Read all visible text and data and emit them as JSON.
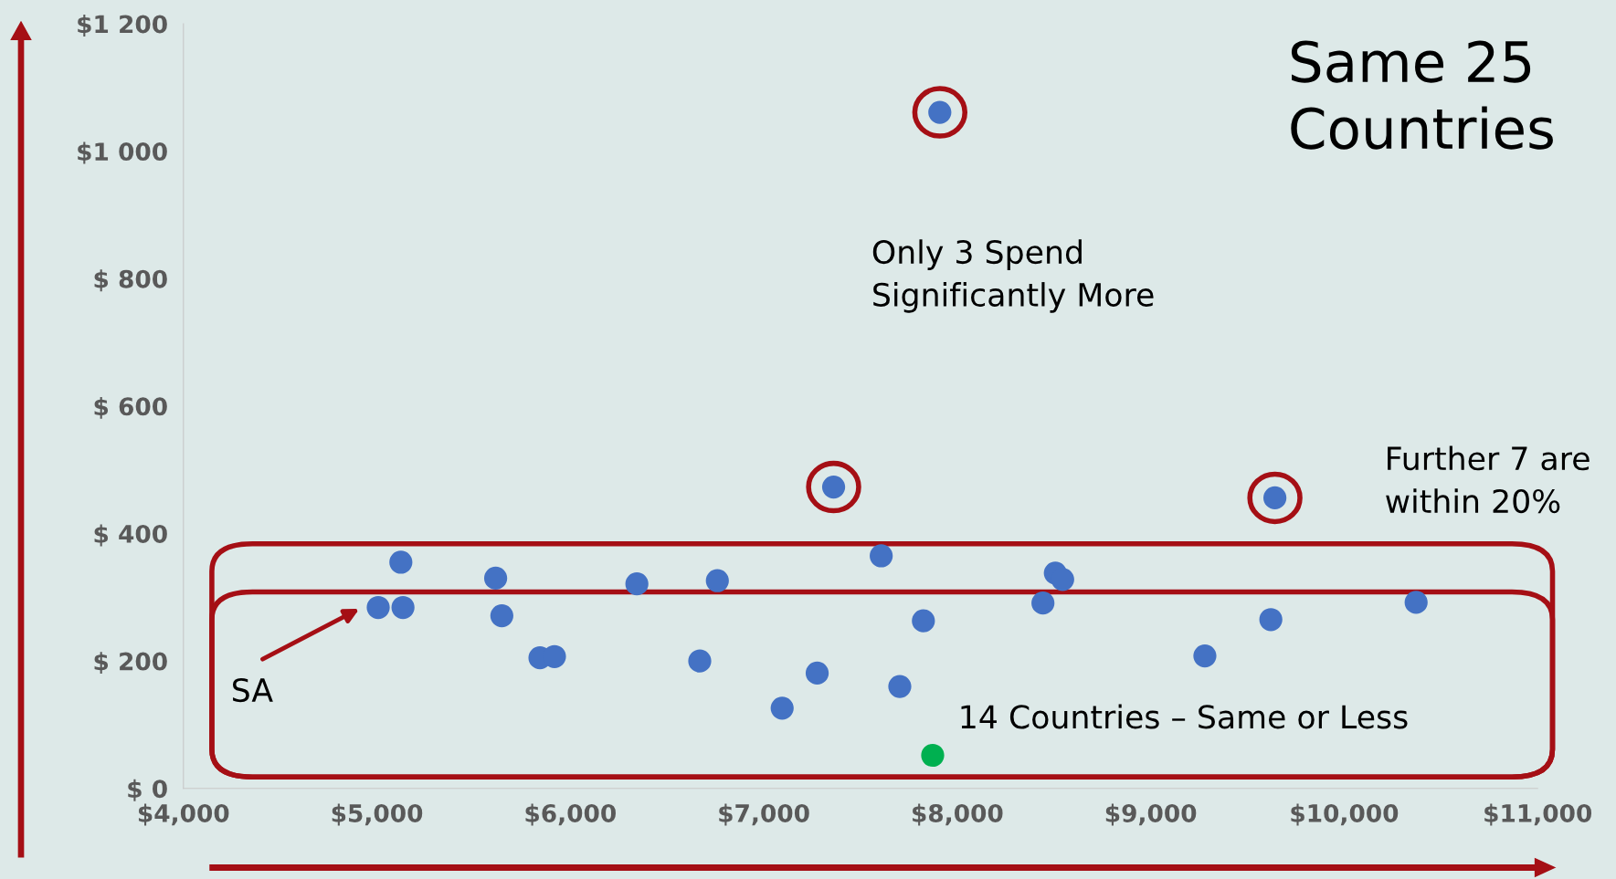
{
  "chart_data": {
    "type": "scatter",
    "title": "Same 25\nCountries",
    "x": [
      5124,
      5007,
      5135,
      5614,
      5646,
      5843,
      5918,
      6344,
      6669,
      6760,
      7095,
      7276,
      7361,
      7607,
      7703,
      7825,
      7873,
      7910,
      8443,
      8507,
      8545,
      9280,
      9621,
      9642,
      10372
    ],
    "values": [
      355,
      284,
      284,
      330,
      271,
      205,
      207,
      321,
      200,
      326,
      126,
      181,
      473,
      365,
      160,
      263,
      52,
      1061,
      291,
      338,
      328,
      208,
      265,
      456,
      292
    ],
    "colors": [
      "#4472c4",
      "#4472c4",
      "#4472c4",
      "#4472c4",
      "#4472c4",
      "#4472c4",
      "#4472c4",
      "#4472c4",
      "#4472c4",
      "#4472c4",
      "#4472c4",
      "#4472c4",
      "#4472c4",
      "#4472c4",
      "#4472c4",
      "#4472c4",
      "#00b050",
      "#4472c4",
      "#4472c4",
      "#4472c4",
      "#4472c4",
      "#4472c4",
      "#4472c4",
      "#4472c4",
      "#4472c4"
    ],
    "xlim": [
      4000,
      11000
    ],
    "xticks": [
      {
        "value": 4000,
        "label": "$4,000"
      },
      {
        "value": 5000,
        "label": "$5,000"
      },
      {
        "value": 6000,
        "label": "$6,000"
      },
      {
        "value": 7000,
        "label": "$7,000"
      },
      {
        "value": 8000,
        "label": "$8,000"
      },
      {
        "value": 9000,
        "label": "$9,000"
      },
      {
        "value": 10000,
        "label": "$10,000"
      },
      {
        "value": 11000,
        "label": "$11,000"
      }
    ],
    "ylim": [
      0,
      1200
    ],
    "yticks": [
      {
        "value": 0,
        "label": "$ 0"
      },
      {
        "value": 200,
        "label": "$ 200"
      },
      {
        "value": 400,
        "label": "$ 400"
      },
      {
        "value": 600,
        "label": "$ 600"
      },
      {
        "value": 800,
        "label": "$ 800"
      },
      {
        "value": 1000,
        "label": "$1 000"
      },
      {
        "value": 1200,
        "label": "$1 200"
      }
    ],
    "annotations": [
      "Only 3 Spend\nSignificantly More",
      "Further 7 are\nwithin 20%",
      "14 Countries – Same or Less",
      "SA"
    ],
    "grid": false,
    "legend": false,
    "marker": "circle"
  }
}
